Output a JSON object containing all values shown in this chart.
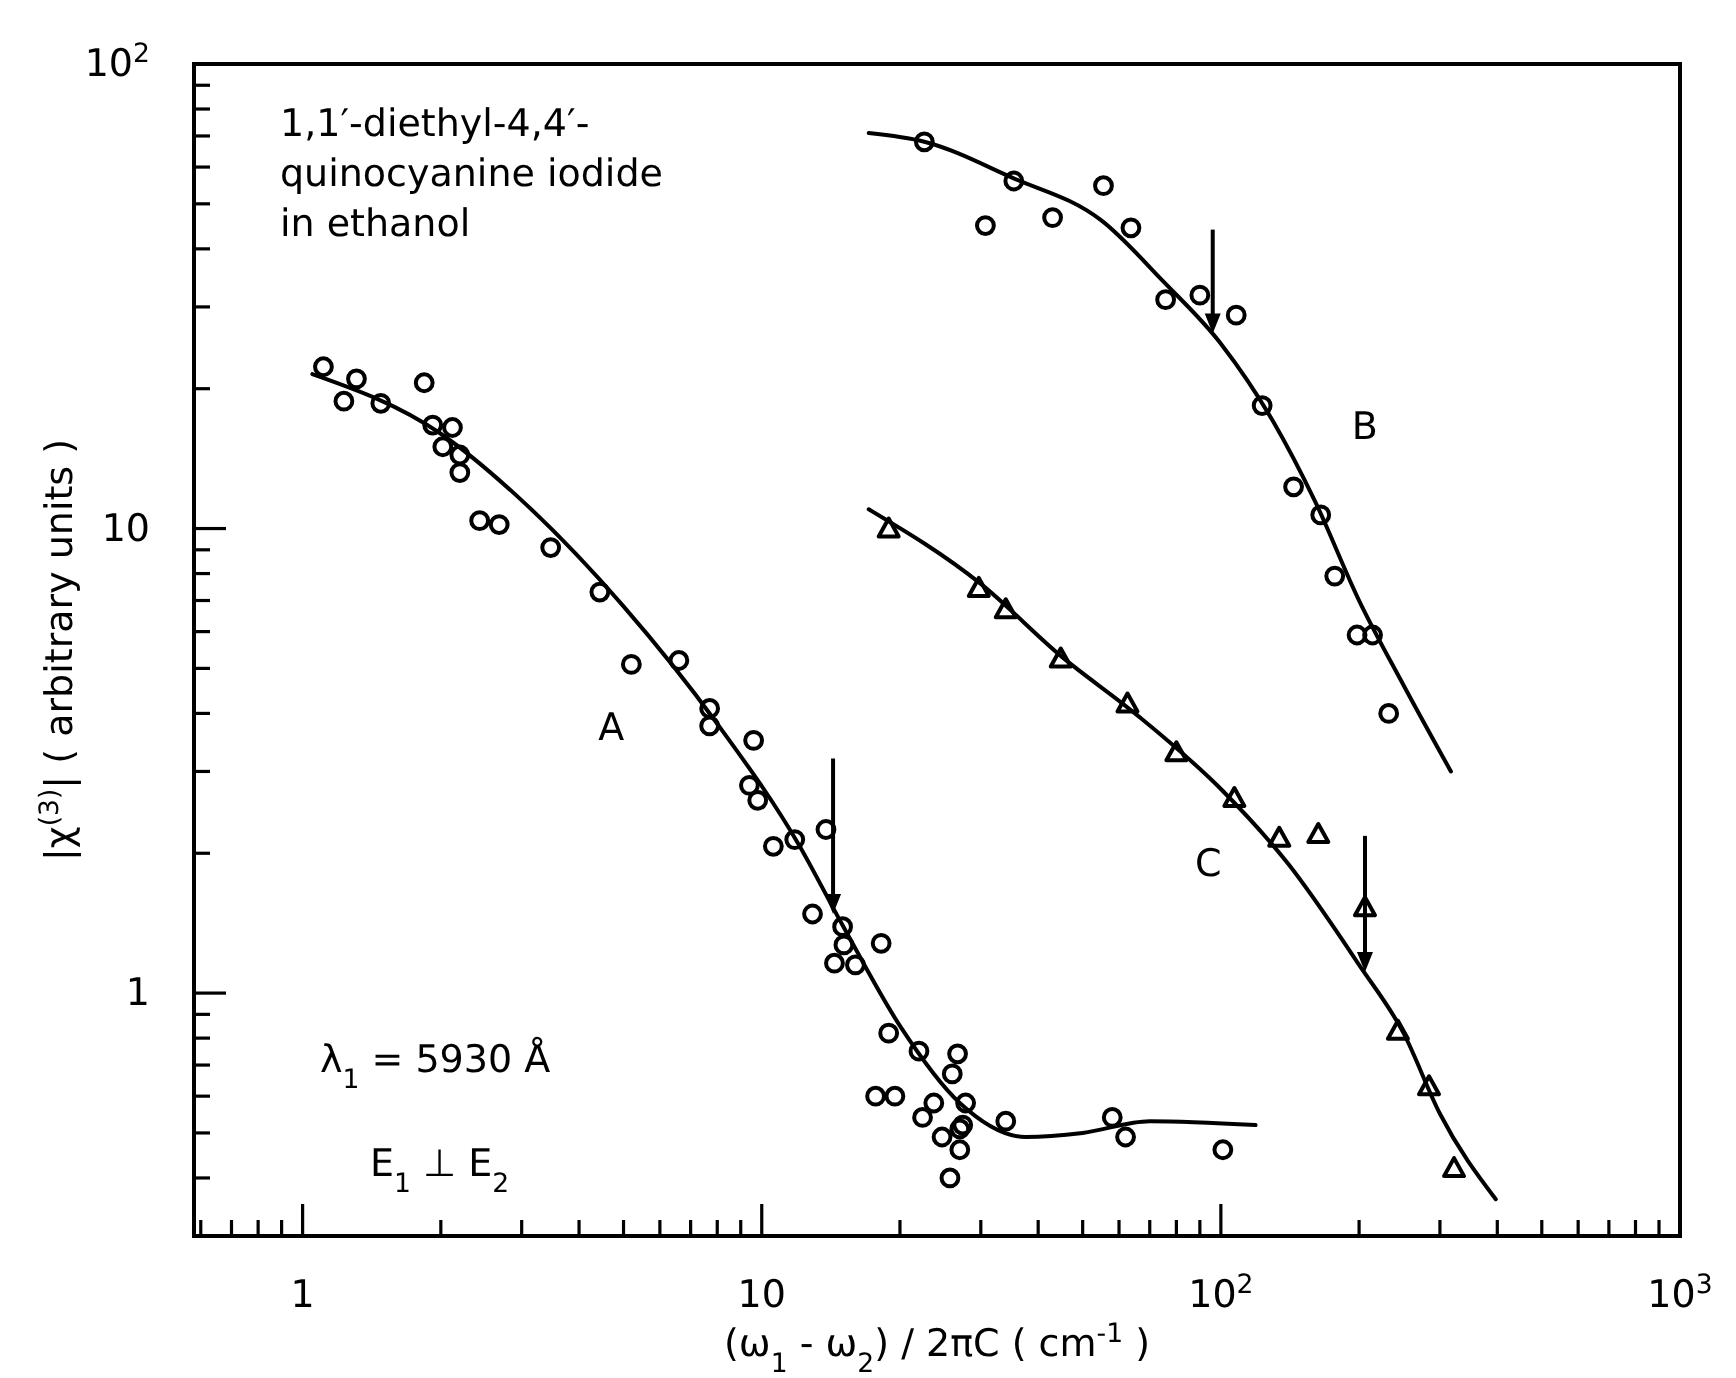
{
  "chart_data": {
    "type": "scatter",
    "log": "xy",
    "grid": false,
    "legend": false,
    "xlabel": "(ω$_{1}$ - ω$_{2}$) / 2πC    ( cm$^{-1}$ )",
    "ylabel": "|χ$^{(3)}$|    ( arbitrary units )",
    "xlim": [
      0.58,
      1000
    ],
    "xticks": [
      {
        "value": 0.6,
        "label": null
      },
      {
        "value": 0.7,
        "label": null
      },
      {
        "value": 0.8,
        "label": null
      },
      {
        "value": 0.9,
        "label": null
      },
      1,
      {
        "value": 2,
        "label": null
      },
      {
        "value": 3,
        "label": null
      },
      {
        "value": 4,
        "label": null
      },
      {
        "value": 5,
        "label": null
      },
      {
        "value": 6,
        "label": null
      },
      {
        "value": 7,
        "label": null
      },
      {
        "value": 8,
        "label": null
      },
      {
        "value": 9,
        "label": null
      },
      10,
      {
        "value": 20,
        "label": null
      },
      {
        "value": 30,
        "label": null
      },
      {
        "value": 40,
        "label": null
      },
      {
        "value": 50,
        "label": null
      },
      {
        "value": 60,
        "label": null
      },
      {
        "value": 70,
        "label": null
      },
      {
        "value": 80,
        "label": null
      },
      {
        "value": 90,
        "label": null
      },
      {
        "value": 100,
        "label": "10$^{2}$"
      },
      {
        "value": 200,
        "label": null
      },
      {
        "value": 300,
        "label": null
      },
      {
        "value": 400,
        "label": null
      },
      {
        "value": 500,
        "label": null
      },
      {
        "value": 600,
        "label": null
      },
      {
        "value": 700,
        "label": null
      },
      {
        "value": 800,
        "label": null
      },
      {
        "value": 900,
        "label": null
      },
      {
        "value": 1000,
        "label": "10$^{3}$"
      }
    ],
    "ylim": [
      0.3,
      100
    ],
    "yticks": [
      {
        "value": 0.4,
        "label": null
      },
      {
        "value": 0.5,
        "label": null
      },
      {
        "value": 0.6,
        "label": null
      },
      {
        "value": 0.7,
        "label": null
      },
      {
        "value": 0.8,
        "label": null
      },
      {
        "value": 0.9,
        "label": null
      },
      1,
      {
        "value": 2,
        "label": null
      },
      {
        "value": 3,
        "label": null
      },
      {
        "value": 4,
        "label": null
      },
      {
        "value": 5,
        "label": null
      },
      {
        "value": 6,
        "label": null
      },
      {
        "value": 7,
        "label": null
      },
      {
        "value": 8,
        "label": null
      },
      {
        "value": 9,
        "label": null
      },
      10,
      {
        "value": 20,
        "label": null
      },
      {
        "value": 30,
        "label": null
      },
      {
        "value": 40,
        "label": null
      },
      {
        "value": 50,
        "label": null
      },
      {
        "value": 60,
        "label": null
      },
      {
        "value": 70,
        "label": null
      },
      {
        "value": 80,
        "label": null
      },
      {
        "value": 90,
        "label": null
      },
      {
        "value": 100,
        "label": "10$^{2}$"
      }
    ],
    "annotations": [
      "1,1′-diethyl-4,4′-\nquinocyanine iodide\nin ethanol",
      "λ$_{1}$ = 5930 Å",
      "E$_{1}$ ⊥ E$_{2}$"
    ],
    "series": [
      {
        "name": "A",
        "marker": "circle",
        "color": "#000000",
        "x": [
          1.11,
          1.23,
          1.31,
          1.48,
          1.84,
          1.92,
          2.12,
          2.02,
          2.2,
          2.2,
          2.43,
          2.68,
          3.47,
          4.44,
          5.2,
          6.6,
          7.7,
          7.7,
          9.6,
          9.4,
          9.8,
          10.6,
          11.8,
          13.8,
          12.9,
          15,
          15.1,
          14.4,
          16,
          18.2,
          18.9,
          22,
          17.7,
          19.5,
          22.4,
          23.7,
          24.7,
          25.7,
          27,
          27,
          26.7,
          26,
          27.8,
          27.4,
          34,
          58,
          62,
          101
        ],
        "values": [
          22.3,
          18.8,
          21,
          18.6,
          20.6,
          16.7,
          16.5,
          15,
          14.4,
          13.2,
          10.4,
          10.2,
          9.1,
          7.3,
          5.1,
          5.2,
          4.1,
          3.76,
          3.5,
          2.8,
          2.6,
          2.07,
          2.14,
          2.25,
          1.48,
          1.39,
          1.27,
          1.16,
          1.15,
          1.28,
          0.82,
          0.75,
          0.6,
          0.6,
          0.54,
          0.58,
          0.49,
          0.4,
          0.51,
          0.46,
          0.74,
          0.67,
          0.58,
          0.52,
          0.53,
          0.54,
          0.49,
          0.46
        ]
      },
      {
        "name": "B",
        "marker": "circle",
        "color": "#000000",
        "x": [
          22.6,
          30.7,
          35.4,
          43,
          55.5,
          63.7,
          75.8,
          90,
          108,
          123,
          144,
          165,
          177,
          198,
          214,
          232
        ],
        "values": [
          68,
          44.9,
          56,
          46.7,
          54.7,
          44.4,
          31.1,
          31.8,
          28.8,
          18.4,
          12.3,
          10.7,
          7.9,
          5.9,
          5.9,
          4
        ]
      },
      {
        "name": "C",
        "marker": "triangle",
        "color": "#000000",
        "x": [
          18.9,
          29.7,
          34,
          44.8,
          62.6,
          80,
          107,
          134,
          163,
          206,
          243,
          284,
          322
        ],
        "values": [
          10,
          7.45,
          6.7,
          5.25,
          4.2,
          3.3,
          2.63,
          2.16,
          2.2,
          1.53,
          0.83,
          0.63,
          0.42
        ]
      },
      {
        "type": "line",
        "marker": "none",
        "line_style": "solid",
        "color": "#000000",
        "x": [
          1.05,
          2,
          3,
          5,
          8,
          12,
          15,
          20,
          27,
          37.6,
          50,
          70,
          119
        ],
        "values": [
          21.5,
          16,
          11.5,
          6.8,
          3.8,
          2.1,
          1.4,
          0.85,
          0.58,
          0.49,
          0.5,
          0.53,
          0.52
        ]
      },
      {
        "type": "line",
        "marker": "none",
        "line_style": "solid",
        "color": "#000000",
        "x": [
          17.1,
          22.6,
          35,
          55,
          75,
          100,
          130,
          160,
          200,
          250,
          317
        ],
        "values": [
          71,
          68,
          57,
          46,
          34,
          25,
          17,
          11.5,
          7,
          4.6,
          3
        ]
      },
      {
        "type": "line",
        "marker": "none",
        "line_style": "solid",
        "color": "#000000",
        "x": [
          17.1,
          30,
          45,
          65,
          100,
          140,
          200,
          250,
          300,
          397
        ],
        "values": [
          11,
          7.6,
          5.3,
          4,
          2.75,
          1.9,
          1.15,
          0.82,
          0.55,
          0.36
        ]
      }
    ]
  }
}
